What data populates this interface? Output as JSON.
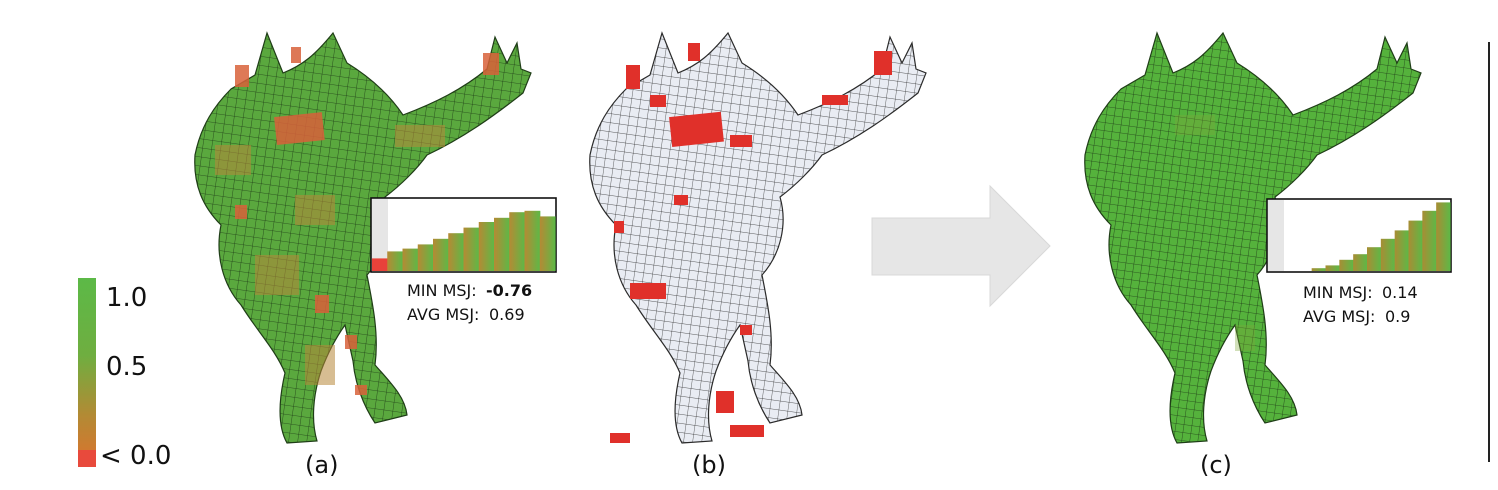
{
  "colorbar": {
    "labels": [
      "1.0",
      "0.5",
      "< 0.0"
    ],
    "colors": {
      "high": "#5cb947",
      "mid": "#8c9a3a",
      "low": "#e84a3c"
    }
  },
  "panels": [
    {
      "caption": "(a)",
      "min_label": "MIN MSJ:",
      "min_value": "-0.76",
      "min_value_color": "#d11a3a",
      "avg_label": "AVG MSJ:",
      "avg_value": "0.69",
      "histogram": [
        0.18,
        0.28,
        0.32,
        0.38,
        0.46,
        0.54,
        0.62,
        0.7,
        0.76,
        0.84,
        0.86,
        0.78
      ]
    },
    {
      "caption": "(b)"
    },
    {
      "caption": "(c)",
      "min_label": "MIN MSJ:",
      "min_value": "0.14",
      "avg_label": "AVG MSJ:",
      "avg_value": "0.9",
      "histogram": [
        0.0,
        0.0,
        0.04,
        0.08,
        0.16,
        0.24,
        0.34,
        0.46,
        0.58,
        0.72,
        0.86,
        0.98
      ]
    }
  ],
  "arrow": {
    "color": "#e6e6e6"
  }
}
